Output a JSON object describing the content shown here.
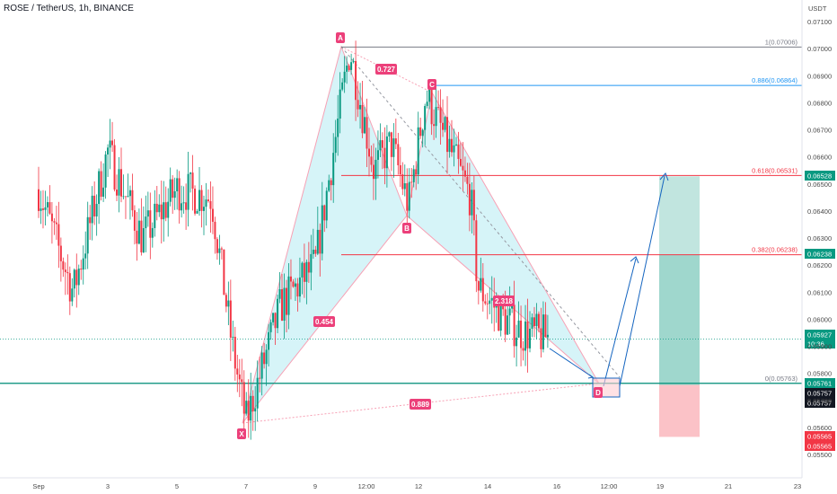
{
  "header": {
    "symbol": "ROSE / TetherUS, 1h, BINANCE"
  },
  "price_axis": {
    "currency": "USDT",
    "ticks": [
      "0.07100",
      "0.07000",
      "0.06900",
      "0.06800",
      "0.06700",
      "0.06600",
      "0.06500",
      "0.06400",
      "0.06300",
      "0.06200",
      "0.06100",
      "0.06000",
      "0.05900",
      "0.05800",
      "0.05700",
      "0.05600",
      "0.05500"
    ]
  },
  "time_axis": {
    "ticks": [
      "Sep",
      "3",
      "5",
      "7",
      "9",
      "12:00",
      "12",
      "14",
      "16",
      "12:00",
      "19",
      "21",
      "23"
    ]
  },
  "fib_levels": [
    {
      "label": "1(0.07006)",
      "color": "#787b86"
    },
    {
      "label": "0.886(0.06864)",
      "color": "#2196f3"
    },
    {
      "label": "0.618(0.06531)",
      "color": "#f23645"
    },
    {
      "label": "0.382(0.06238)",
      "color": "#f23645"
    },
    {
      "label": "0(0.05763)",
      "color": "#787b86"
    }
  ],
  "pattern_points": [
    "A",
    "B",
    "C",
    "D",
    "X"
  ],
  "pattern_ratios": [
    "0.727",
    "2.318",
    "0.454",
    "0.889"
  ],
  "price_tags": [
    {
      "text": "0.06528",
      "color": "#089981"
    },
    {
      "text": "0.06238",
      "color": "#089981"
    },
    {
      "text": "0.05927",
      "color": "#089981"
    },
    {
      "text": "10:36",
      "color": "#089981"
    },
    {
      "text": "0.05761",
      "color": "#089981"
    },
    {
      "text": "0.05757",
      "color": "#131722"
    },
    {
      "text": "0.05757",
      "color": "#131722"
    },
    {
      "text": "0.05565",
      "color": "#f23645"
    },
    {
      "text": "0.05565",
      "color": "#f23645"
    }
  ],
  "chart_data": {
    "type": "candlestick",
    "x_ticks": [
      "Sep",
      "3",
      "5",
      "7",
      "9",
      "12:00",
      "12",
      "14",
      "16",
      "12:00",
      "19",
      "21",
      "23"
    ],
    "ylim": [
      0.0547,
      0.0716
    ],
    "harmonic_pattern": {
      "X": {
        "date": "Sep 7",
        "price": 0.0562
      },
      "A": {
        "date": "Sep 10",
        "price": 0.07
      },
      "B": {
        "date": "Sep 11",
        "price": 0.064
      },
      "C": {
        "date": "Sep 12",
        "price": 0.0683
      },
      "D": {
        "date": "Sep 18",
        "price": 0.0576
      }
    },
    "fibonacci": [
      {
        "ratio": 1,
        "price": 0.07006
      },
      {
        "ratio": 0.886,
        "price": 0.06864
      },
      {
        "ratio": 0.618,
        "price": 0.06531
      },
      {
        "ratio": 0.382,
        "price": 0.06238
      },
      {
        "ratio": 0,
        "price": 0.05763
      }
    ],
    "position": {
      "entry": 0.05757,
      "target": 0.06528,
      "stop": 0.05565
    },
    "last_price": 0.05927,
    "price_path_keypoints": [
      {
        "date": "Sep 1",
        "price": 0.0648
      },
      {
        "date": "Sep 2",
        "price": 0.061
      },
      {
        "date": "Sep 3",
        "price": 0.0662
      },
      {
        "date": "Sep 4",
        "price": 0.063
      },
      {
        "date": "Sep 5",
        "price": 0.0648
      },
      {
        "date": "Sep 6",
        "price": 0.0645
      },
      {
        "date": "Sep 6.6",
        "price": 0.059
      },
      {
        "date": "Sep 7",
        "price": 0.0562
      },
      {
        "date": "Sep 8",
        "price": 0.0605
      },
      {
        "date": "Sep 9",
        "price": 0.062
      },
      {
        "date": "Sep 10",
        "price": 0.07
      },
      {
        "date": "Sep 10.7",
        "price": 0.0655
      },
      {
        "date": "Sep 11.2",
        "price": 0.0665
      },
      {
        "date": "Sep 11.7",
        "price": 0.0642
      },
      {
        "date": "Sep 12.2",
        "price": 0.0683
      },
      {
        "date": "Sep 13.5",
        "price": 0.0645
      },
      {
        "date": "Sep 13.7",
        "price": 0.0612
      },
      {
        "date": "Sep 14.5",
        "price": 0.06
      },
      {
        "date": "Sep 15",
        "price": 0.0595
      },
      {
        "date": "Sep 16",
        "price": 0.0593
      }
    ]
  }
}
